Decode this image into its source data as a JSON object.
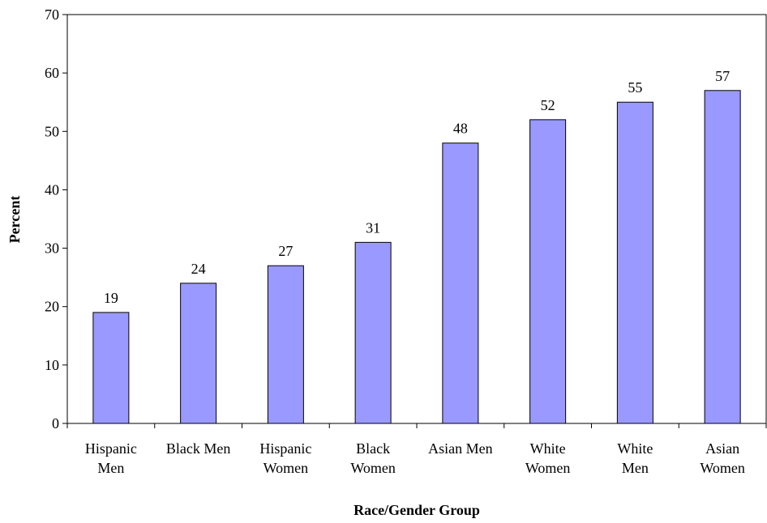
{
  "chart_data": {
    "type": "bar",
    "categories": [
      [
        "Hispanic",
        "Men"
      ],
      [
        "Black Men"
      ],
      [
        "Hispanic",
        "Women"
      ],
      [
        "Black",
        "Women"
      ],
      [
        "Asian Men"
      ],
      [
        "White",
        "Women"
      ],
      [
        "White",
        "Men"
      ],
      [
        "Asian",
        "Women"
      ]
    ],
    "values": [
      19,
      24,
      27,
      31,
      48,
      52,
      55,
      57
    ],
    "data_labels": [
      "19",
      "24",
      "27",
      "31",
      "48",
      "52",
      "55",
      "57"
    ],
    "title": "",
    "xlabel": "Race/Gender Group",
    "ylabel": "Percent",
    "ylim": [
      0,
      70
    ],
    "yticks": [
      0,
      10,
      20,
      30,
      40,
      50,
      60,
      70
    ],
    "grid": false,
    "legend": "none",
    "colors": {
      "bar_fill": "#9999ff",
      "bar_stroke": "#000000",
      "axis": "#000000",
      "background": "#ffffff"
    }
  }
}
